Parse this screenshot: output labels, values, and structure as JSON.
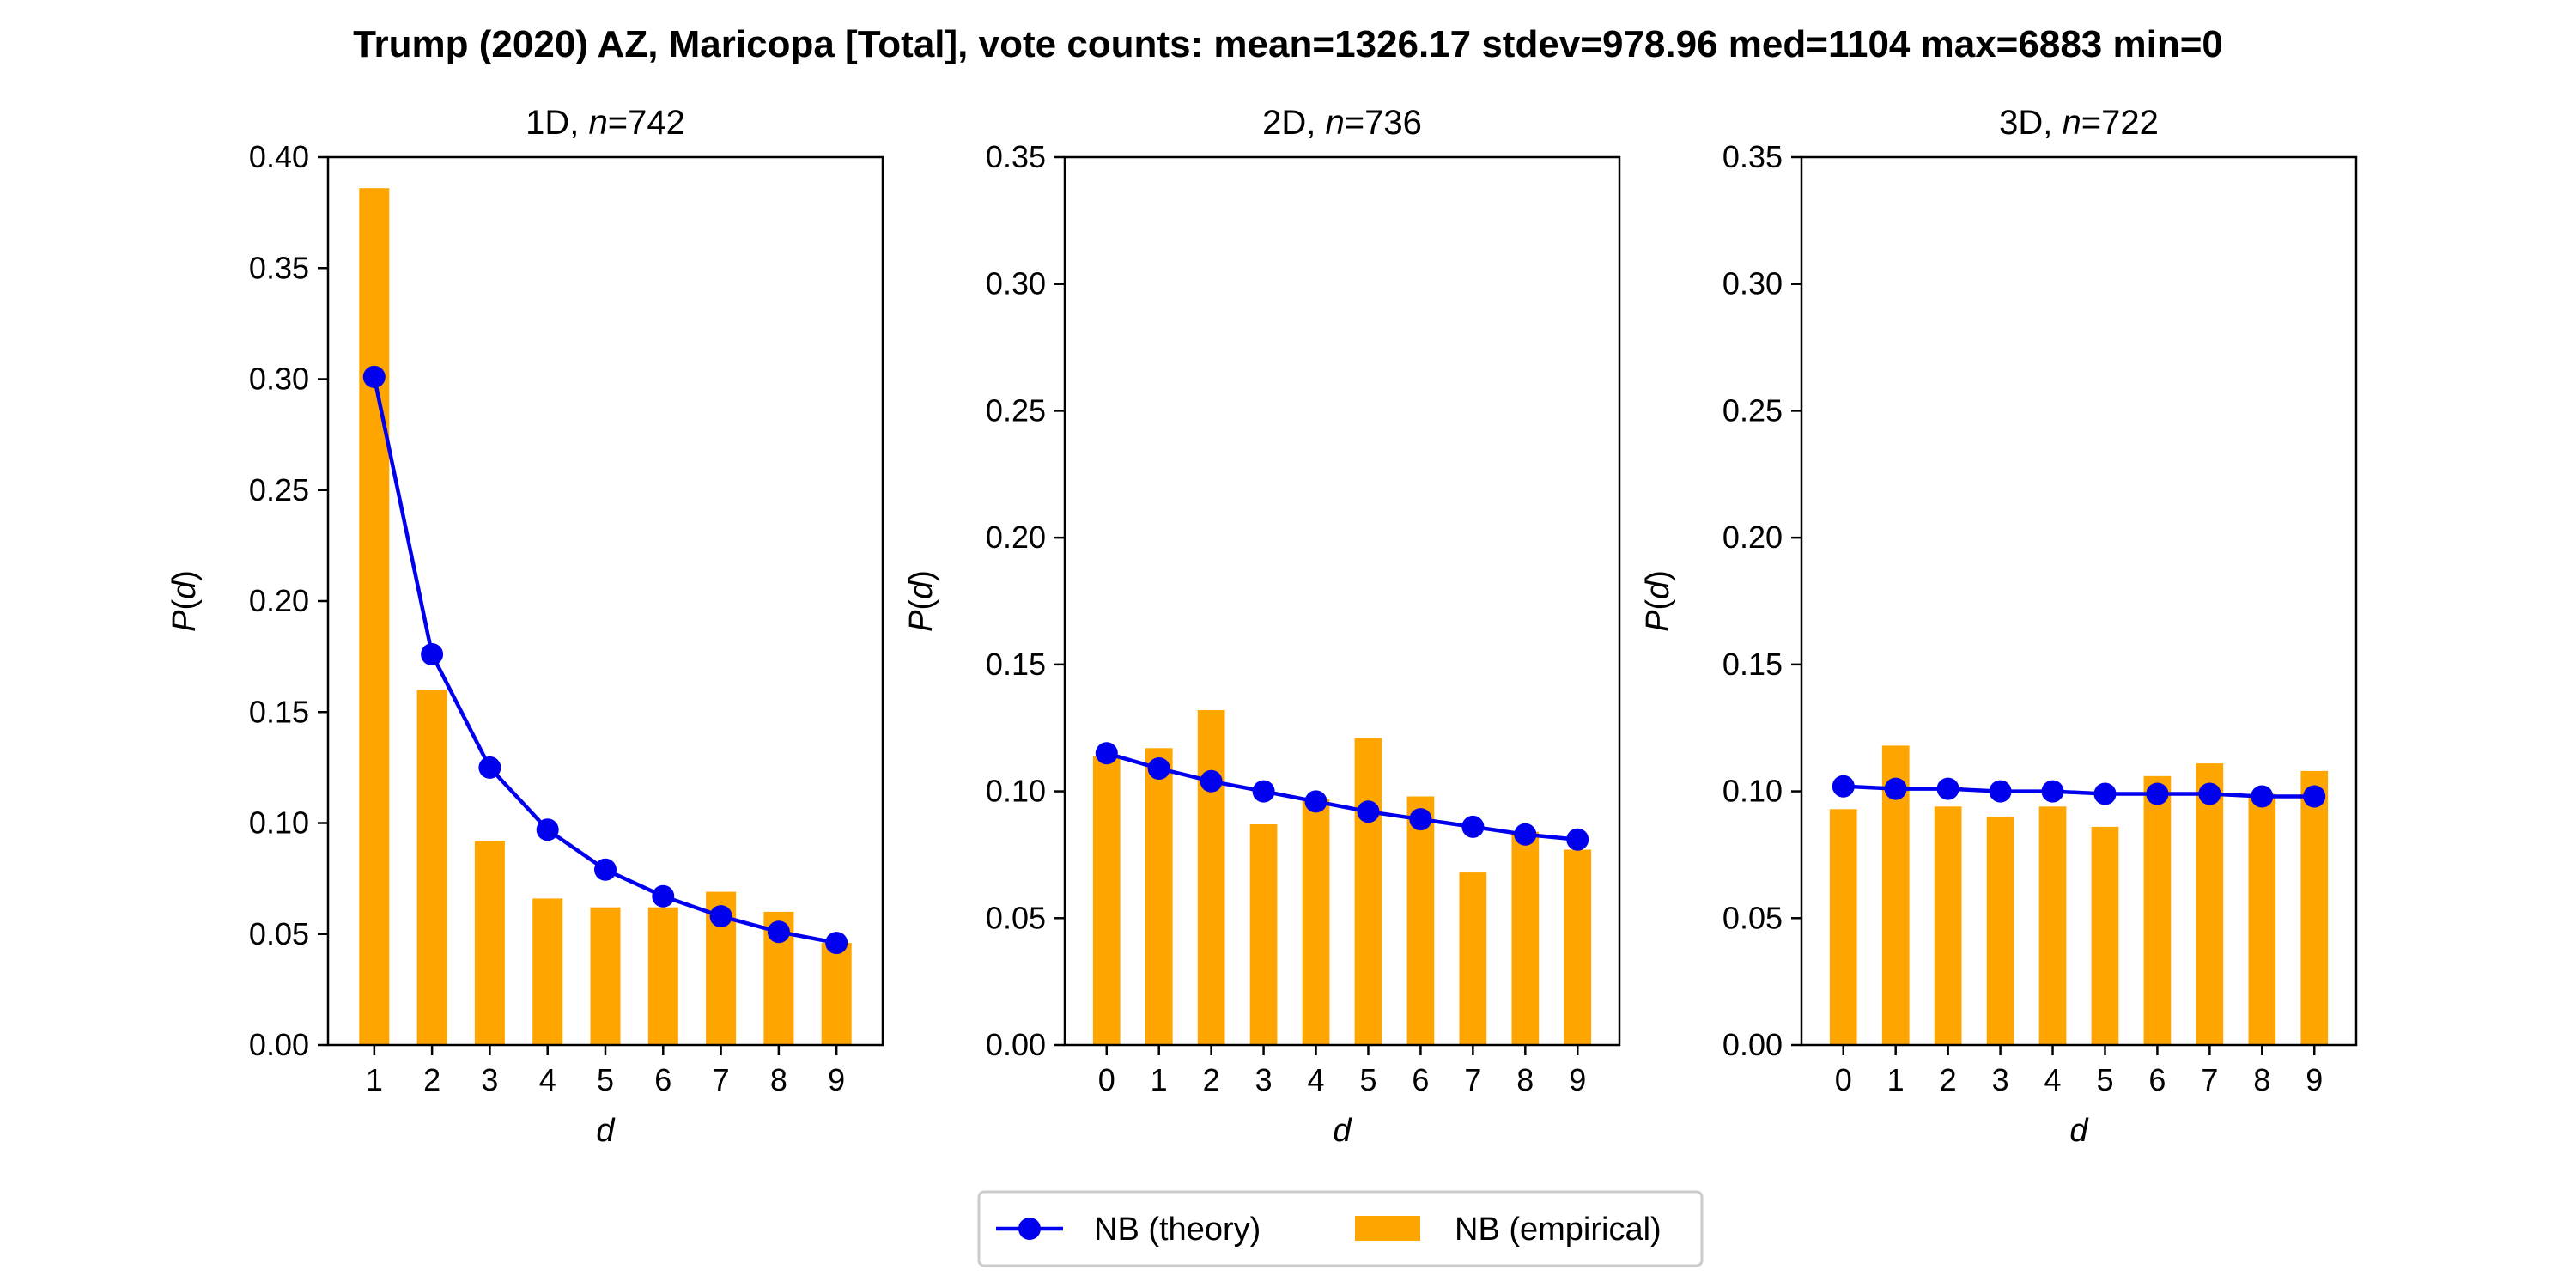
{
  "figure": {
    "title": "Trump (2020) AZ, Maricopa [Total], vote counts: mean=1326.17 stdev=978.96 med=1104 max=6883 min=0",
    "legend": {
      "theory_label": "NB (theory)",
      "empirical_label": "NB (empirical)",
      "placement": "bottom-center"
    },
    "colors": {
      "theory": "#0000ee",
      "empirical": "#ffa500"
    }
  },
  "chart_data": [
    {
      "type": "bar",
      "title_prefix": "1D, ",
      "title_n": "n",
      "title_suffix": "=742",
      "xlabel": "d",
      "ylabel_p": "P",
      "ylabel_arg": "d",
      "ylim": [
        0,
        0.4
      ],
      "yticks": [
        0.0,
        0.05,
        0.1,
        0.15,
        0.2,
        0.25,
        0.3,
        0.35,
        0.4
      ],
      "categories": [
        "1",
        "2",
        "3",
        "4",
        "5",
        "6",
        "7",
        "8",
        "9"
      ],
      "series": [
        {
          "name": "NB (empirical)",
          "kind": "bar",
          "values": [
            0.386,
            0.16,
            0.092,
            0.066,
            0.062,
            0.062,
            0.069,
            0.06,
            0.046
          ]
        },
        {
          "name": "NB (theory)",
          "kind": "line",
          "values": [
            0.301,
            0.176,
            0.125,
            0.097,
            0.079,
            0.067,
            0.058,
            0.051,
            0.046
          ]
        }
      ],
      "grid": false
    },
    {
      "type": "bar",
      "title_prefix": "2D, ",
      "title_n": "n",
      "title_suffix": "=736",
      "xlabel": "d",
      "ylabel_p": "P",
      "ylabel_arg": "d",
      "ylim": [
        0,
        0.35
      ],
      "yticks": [
        0.0,
        0.05,
        0.1,
        0.15,
        0.2,
        0.25,
        0.3,
        0.35
      ],
      "categories": [
        "0",
        "1",
        "2",
        "3",
        "4",
        "5",
        "6",
        "7",
        "8",
        "9"
      ],
      "series": [
        {
          "name": "NB (empirical)",
          "kind": "bar",
          "values": [
            0.114,
            0.117,
            0.132,
            0.087,
            0.097,
            0.121,
            0.098,
            0.068,
            0.084,
            0.077
          ]
        },
        {
          "name": "NB (theory)",
          "kind": "line",
          "values": [
            0.115,
            0.109,
            0.104,
            0.1,
            0.096,
            0.092,
            0.089,
            0.086,
            0.083,
            0.081
          ]
        }
      ],
      "grid": false
    },
    {
      "type": "bar",
      "title_prefix": "3D, ",
      "title_n": "n",
      "title_suffix": "=722",
      "xlabel": "d",
      "ylabel_p": "P",
      "ylabel_arg": "d",
      "ylim": [
        0,
        0.35
      ],
      "yticks": [
        0.0,
        0.05,
        0.1,
        0.15,
        0.2,
        0.25,
        0.3,
        0.35
      ],
      "categories": [
        "0",
        "1",
        "2",
        "3",
        "4",
        "5",
        "6",
        "7",
        "8",
        "9"
      ],
      "series": [
        {
          "name": "NB (empirical)",
          "kind": "bar",
          "values": [
            0.093,
            0.118,
            0.094,
            0.09,
            0.094,
            0.086,
            0.106,
            0.111,
            0.099,
            0.108
          ]
        },
        {
          "name": "NB (theory)",
          "kind": "line",
          "values": [
            0.102,
            0.101,
            0.101,
            0.1,
            0.1,
            0.099,
            0.099,
            0.099,
            0.098,
            0.098
          ]
        }
      ],
      "grid": false
    }
  ]
}
